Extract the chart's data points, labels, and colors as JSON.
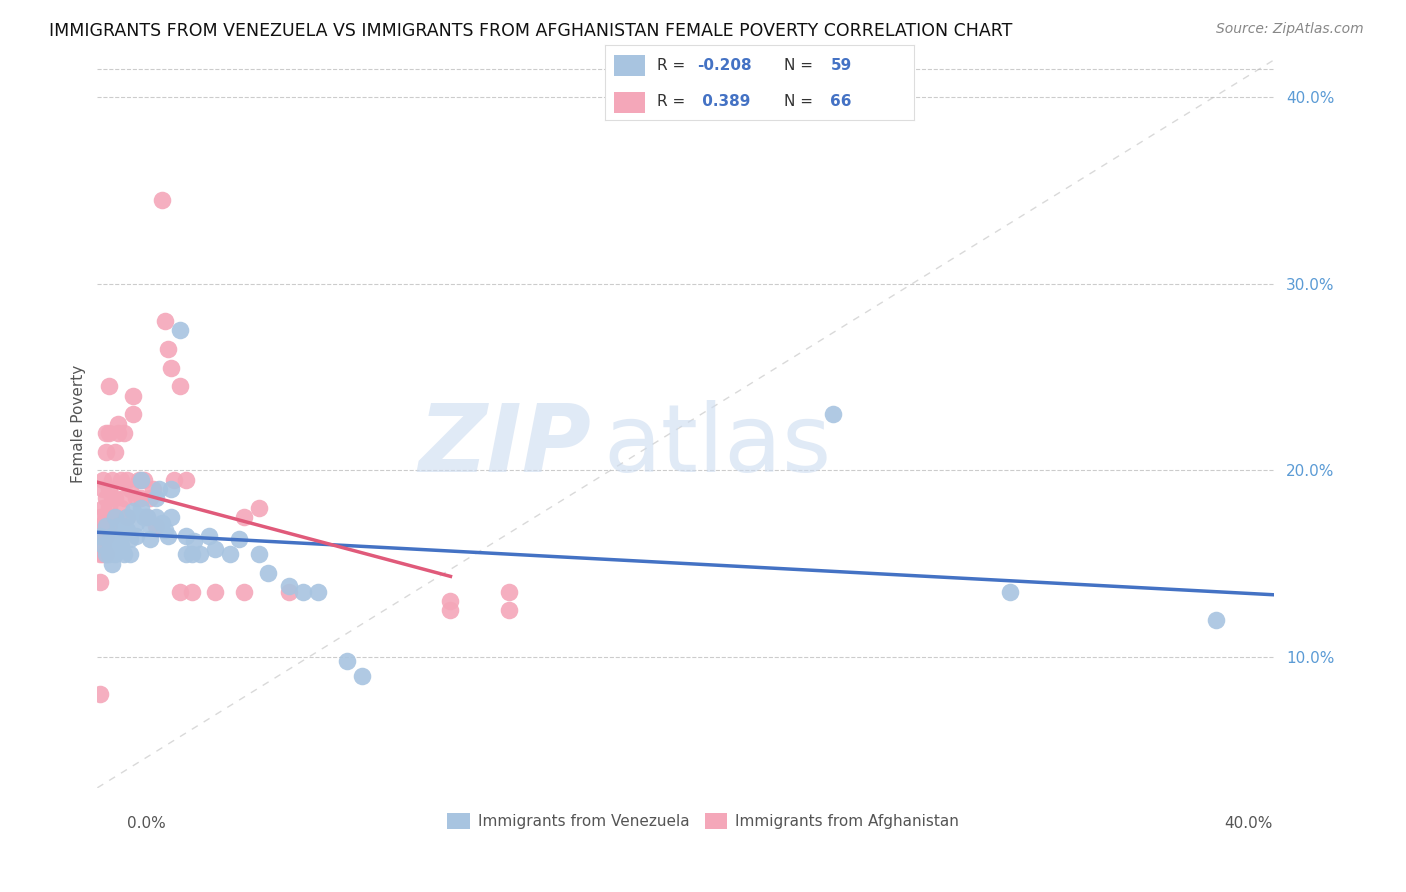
{
  "title": "IMMIGRANTS FROM VENEZUELA VS IMMIGRANTS FROM AFGHANISTAN FEMALE POVERTY CORRELATION CHART",
  "source": "Source: ZipAtlas.com",
  "ylabel": "Female Poverty",
  "legend_label1": "Immigrants from Venezuela",
  "legend_label2": "Immigrants from Afghanistan",
  "R_venezuela": -0.208,
  "N_venezuela": 59,
  "R_afghanistan": 0.389,
  "N_afghanistan": 66,
  "color_venezuela": "#a8c4e0",
  "color_afghanistan": "#f4a7b9",
  "trendline_venezuela": "#4472c4",
  "trendline_afghanistan": "#e05a7a",
  "diag_line_color": "#c0c0c0",
  "xlim": [
    0.0,
    0.4
  ],
  "ylim": [
    0.03,
    0.42
  ],
  "yticks": [
    0.1,
    0.2,
    0.3,
    0.4
  ],
  "ytick_labels": [
    "10.0%",
    "20.0%",
    "30.0%",
    "40.0%"
  ],
  "venezuela_points": [
    [
      0.001,
      0.165
    ],
    [
      0.002,
      0.16
    ],
    [
      0.003,
      0.155
    ],
    [
      0.003,
      0.17
    ],
    [
      0.004,
      0.155
    ],
    [
      0.004,
      0.162
    ],
    [
      0.005,
      0.158
    ],
    [
      0.005,
      0.165
    ],
    [
      0.005,
      0.15
    ],
    [
      0.006,
      0.16
    ],
    [
      0.006,
      0.175
    ],
    [
      0.006,
      0.155
    ],
    [
      0.007,
      0.162
    ],
    [
      0.007,
      0.17
    ],
    [
      0.008,
      0.165
    ],
    [
      0.008,
      0.16
    ],
    [
      0.009,
      0.155
    ],
    [
      0.009,
      0.17
    ],
    [
      0.01,
      0.168
    ],
    [
      0.01,
      0.175
    ],
    [
      0.011,
      0.163
    ],
    [
      0.011,
      0.155
    ],
    [
      0.012,
      0.178
    ],
    [
      0.013,
      0.165
    ],
    [
      0.013,
      0.172
    ],
    [
      0.015,
      0.18
    ],
    [
      0.015,
      0.195
    ],
    [
      0.016,
      0.175
    ],
    [
      0.017,
      0.175
    ],
    [
      0.018,
      0.163
    ],
    [
      0.018,
      0.17
    ],
    [
      0.02,
      0.185
    ],
    [
      0.02,
      0.175
    ],
    [
      0.021,
      0.19
    ],
    [
      0.022,
      0.172
    ],
    [
      0.023,
      0.168
    ],
    [
      0.024,
      0.165
    ],
    [
      0.025,
      0.19
    ],
    [
      0.025,
      0.175
    ],
    [
      0.028,
      0.275
    ],
    [
      0.03,
      0.155
    ],
    [
      0.03,
      0.165
    ],
    [
      0.032,
      0.155
    ],
    [
      0.033,
      0.162
    ],
    [
      0.035,
      0.155
    ],
    [
      0.038,
      0.165
    ],
    [
      0.04,
      0.158
    ],
    [
      0.045,
      0.155
    ],
    [
      0.048,
      0.163
    ],
    [
      0.055,
      0.155
    ],
    [
      0.058,
      0.145
    ],
    [
      0.065,
      0.138
    ],
    [
      0.07,
      0.135
    ],
    [
      0.075,
      0.135
    ],
    [
      0.085,
      0.098
    ],
    [
      0.09,
      0.09
    ],
    [
      0.25,
      0.23
    ],
    [
      0.31,
      0.135
    ],
    [
      0.38,
      0.12
    ]
  ],
  "afghanistan_points": [
    [
      0.001,
      0.08
    ],
    [
      0.001,
      0.14
    ],
    [
      0.001,
      0.155
    ],
    [
      0.001,
      0.16
    ],
    [
      0.001,
      0.17
    ],
    [
      0.001,
      0.175
    ],
    [
      0.002,
      0.155
    ],
    [
      0.002,
      0.16
    ],
    [
      0.002,
      0.165
    ],
    [
      0.002,
      0.17
    ],
    [
      0.002,
      0.18
    ],
    [
      0.002,
      0.19
    ],
    [
      0.002,
      0.195
    ],
    [
      0.003,
      0.155
    ],
    [
      0.003,
      0.165
    ],
    [
      0.003,
      0.175
    ],
    [
      0.003,
      0.185
    ],
    [
      0.003,
      0.21
    ],
    [
      0.003,
      0.22
    ],
    [
      0.004,
      0.17
    ],
    [
      0.004,
      0.18
    ],
    [
      0.004,
      0.19
    ],
    [
      0.004,
      0.22
    ],
    [
      0.004,
      0.245
    ],
    [
      0.005,
      0.175
    ],
    [
      0.005,
      0.185
    ],
    [
      0.005,
      0.195
    ],
    [
      0.006,
      0.185
    ],
    [
      0.006,
      0.21
    ],
    [
      0.007,
      0.22
    ],
    [
      0.007,
      0.225
    ],
    [
      0.008,
      0.18
    ],
    [
      0.008,
      0.195
    ],
    [
      0.009,
      0.185
    ],
    [
      0.009,
      0.22
    ],
    [
      0.01,
      0.175
    ],
    [
      0.01,
      0.195
    ],
    [
      0.011,
      0.19
    ],
    [
      0.012,
      0.23
    ],
    [
      0.012,
      0.24
    ],
    [
      0.013,
      0.185
    ],
    [
      0.014,
      0.195
    ],
    [
      0.015,
      0.185
    ],
    [
      0.016,
      0.195
    ],
    [
      0.017,
      0.175
    ],
    [
      0.018,
      0.185
    ],
    [
      0.019,
      0.19
    ],
    [
      0.02,
      0.17
    ],
    [
      0.022,
      0.345
    ],
    [
      0.023,
      0.28
    ],
    [
      0.024,
      0.265
    ],
    [
      0.025,
      0.255
    ],
    [
      0.026,
      0.195
    ],
    [
      0.028,
      0.135
    ],
    [
      0.028,
      0.245
    ],
    [
      0.03,
      0.195
    ],
    [
      0.032,
      0.135
    ],
    [
      0.04,
      0.135
    ],
    [
      0.05,
      0.175
    ],
    [
      0.05,
      0.135
    ],
    [
      0.055,
      0.18
    ],
    [
      0.065,
      0.135
    ],
    [
      0.12,
      0.125
    ],
    [
      0.12,
      0.13
    ],
    [
      0.14,
      0.125
    ],
    [
      0.14,
      0.135
    ]
  ]
}
